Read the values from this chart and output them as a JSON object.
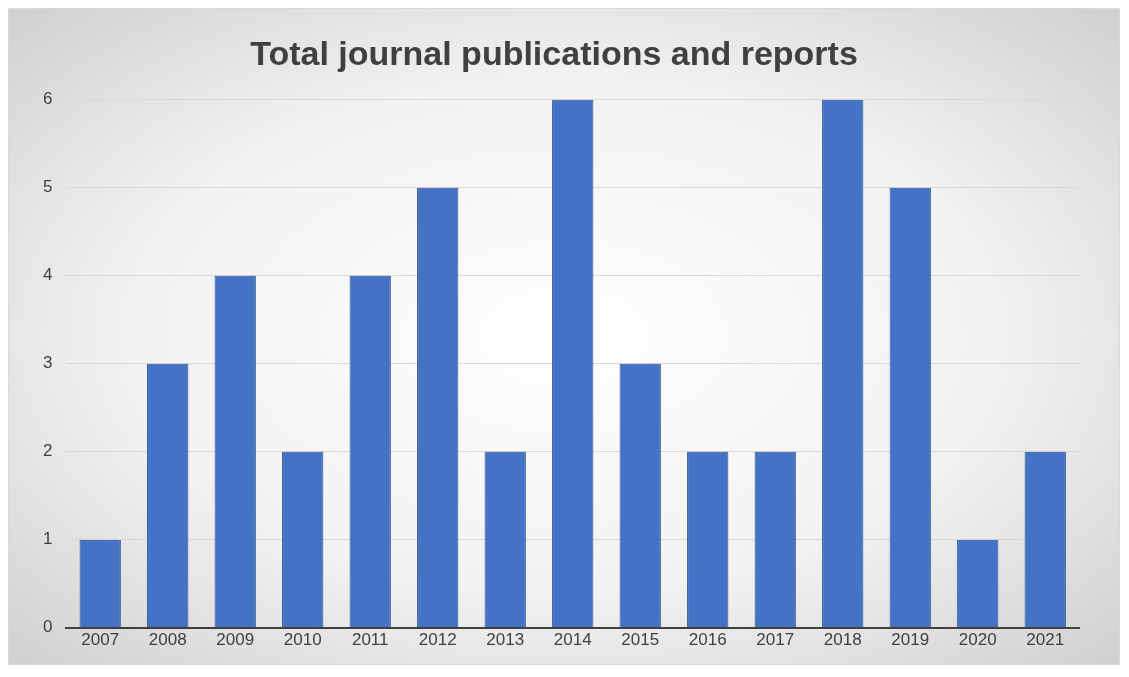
{
  "chart_data": {
    "type": "bar",
    "title": "Total journal publications and reports",
    "categories": [
      "2007",
      "2008",
      "2009",
      "2010",
      "2011",
      "2012",
      "2013",
      "2014",
      "2015",
      "2016",
      "2017",
      "2018",
      "2019",
      "2020",
      "2021"
    ],
    "values": [
      1,
      3,
      4,
      2,
      4,
      5,
      2,
      6,
      3,
      2,
      2,
      6,
      5,
      1,
      2
    ],
    "color": "#4472c4",
    "ylim": [
      0,
      6
    ],
    "yticks": [
      0,
      1,
      2,
      3,
      4,
      5,
      6
    ],
    "grid": "y"
  }
}
